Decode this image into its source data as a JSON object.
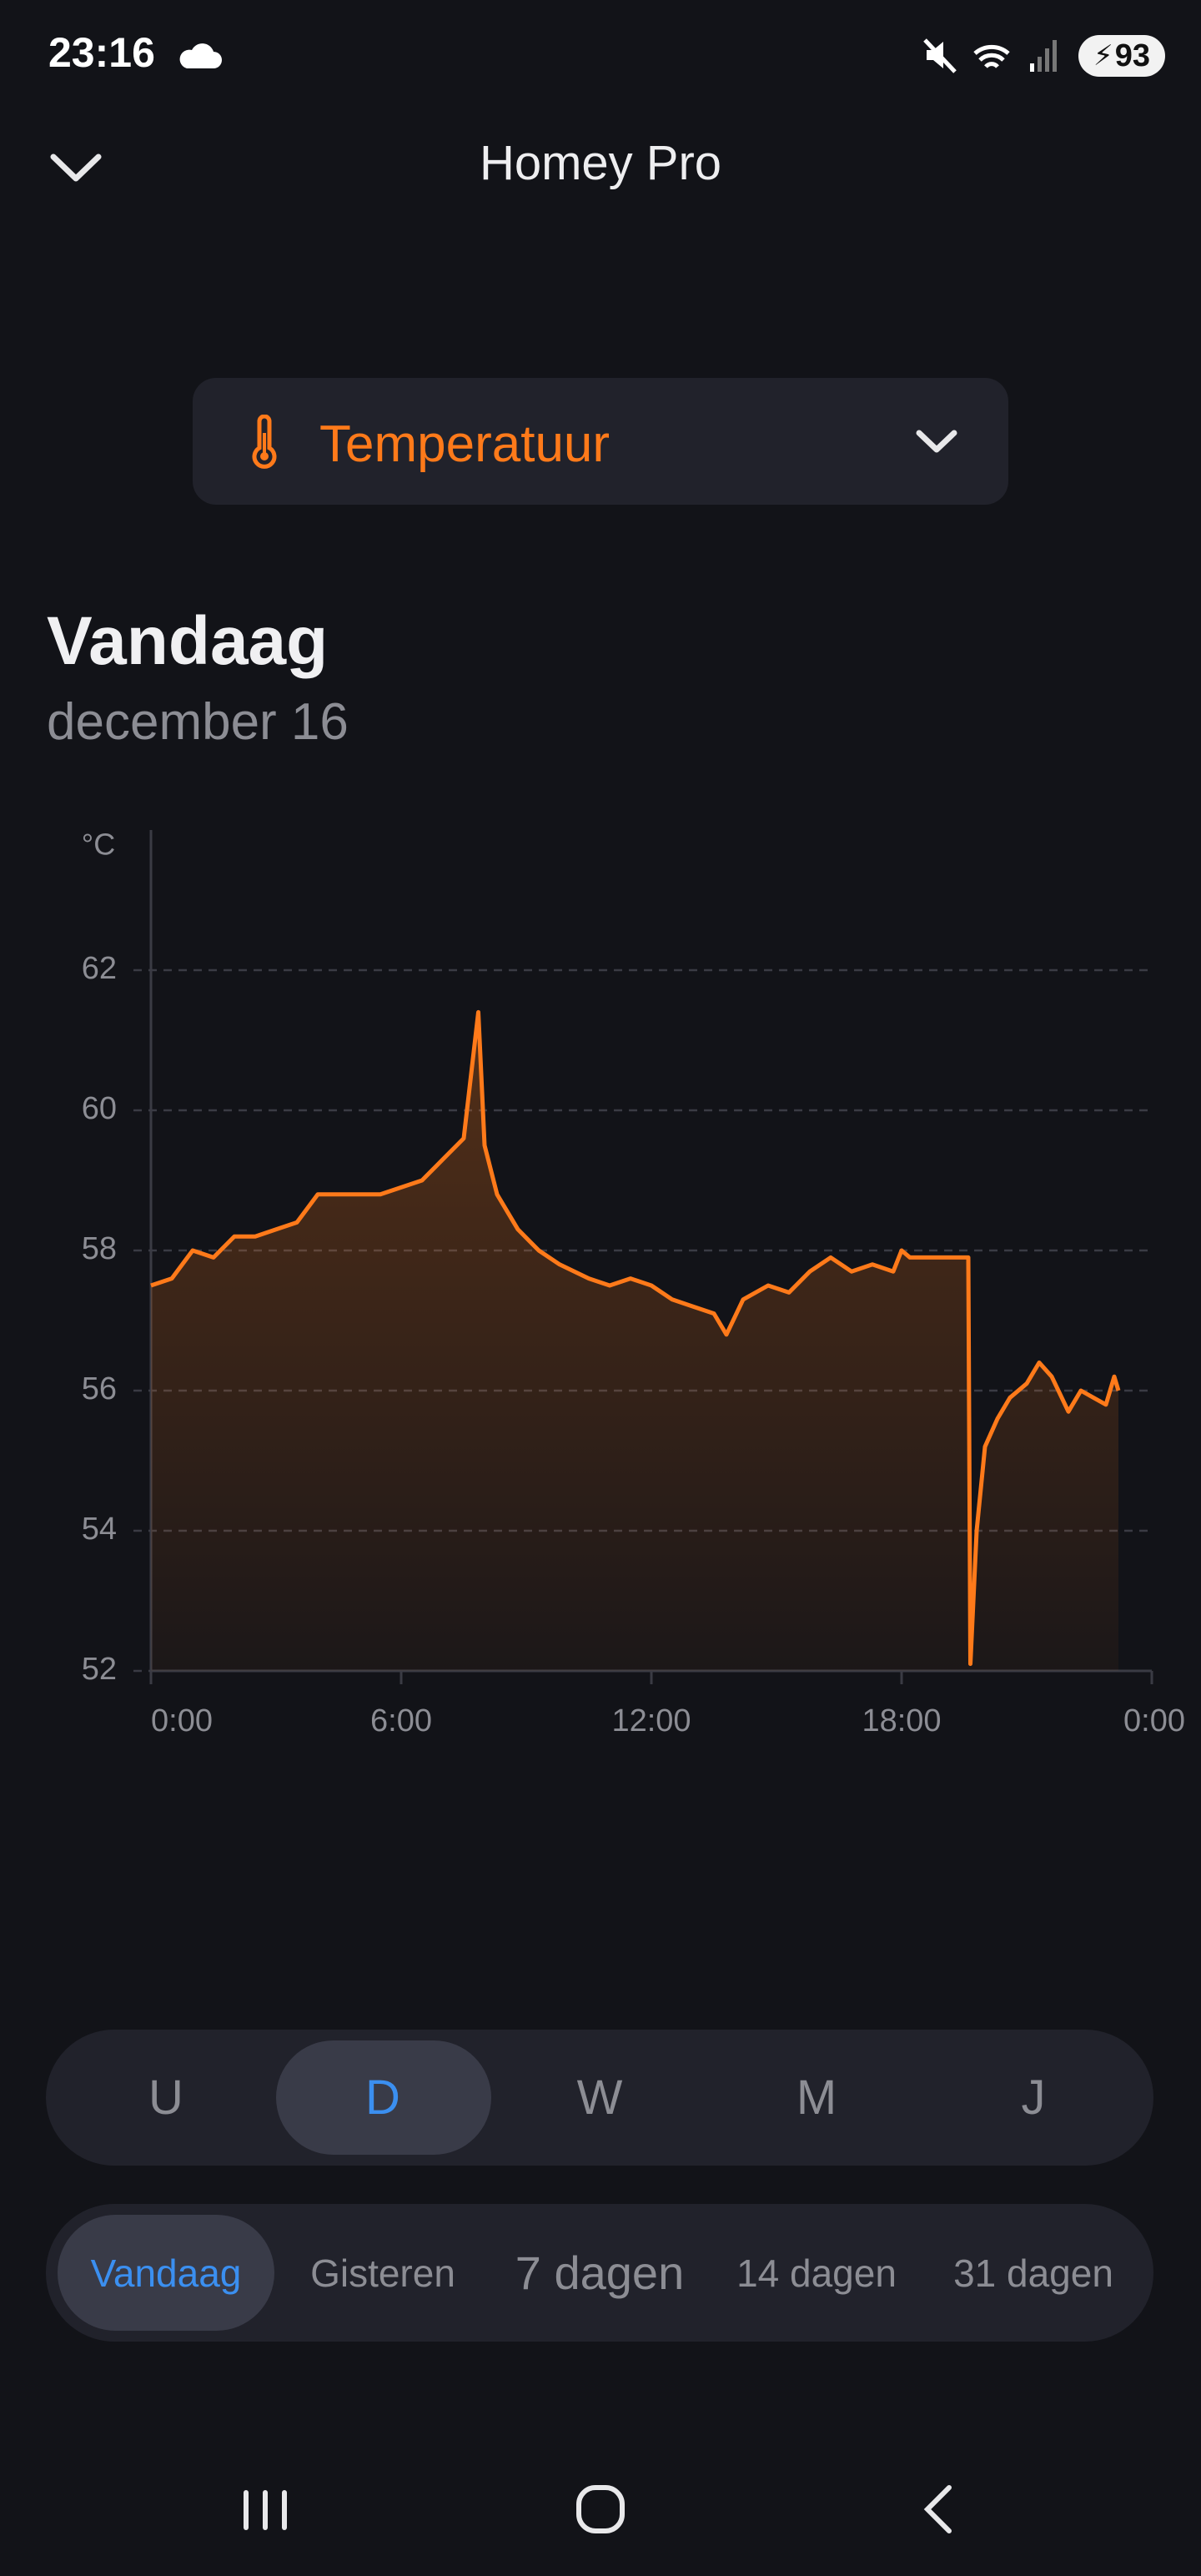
{
  "status_bar": {
    "time": "23:16",
    "battery": "93"
  },
  "header": {
    "title": "Homey Pro"
  },
  "selector": {
    "label": "Temperatuur"
  },
  "heading": {
    "title": "Vandaag",
    "subtitle": "december 16"
  },
  "chart_data": {
    "type": "line",
    "y_unit": "°C",
    "color": "#ff7a1a",
    "x": [
      0,
      0.5,
      1,
      1.5,
      2,
      2.5,
      3,
      3.5,
      4,
      4.5,
      5,
      5.5,
      6,
      6.5,
      7,
      7.5,
      7.85,
      8,
      8.3,
      8.8,
      9.3,
      9.8,
      10.5,
      11,
      11.5,
      12,
      12.5,
      13,
      13.5,
      13.8,
      14.2,
      14.8,
      15.3,
      15.8,
      16.3,
      16.8,
      17.3,
      17.8,
      18,
      18.2,
      19.6,
      19.65,
      19.8,
      20,
      20.3,
      20.6,
      21,
      21.3,
      21.6,
      22,
      22.3,
      22.6,
      22.9,
      23.1,
      23.2
    ],
    "values": [
      57.5,
      57.6,
      58,
      57.9,
      58.2,
      58.2,
      58.3,
      58.4,
      58.8,
      58.8,
      58.8,
      58.8,
      58.9,
      59,
      59.3,
      59.6,
      61.4,
      59.5,
      58.8,
      58.3,
      58,
      57.8,
      57.6,
      57.5,
      57.6,
      57.5,
      57.3,
      57.2,
      57.1,
      56.8,
      57.3,
      57.5,
      57.4,
      57.7,
      57.9,
      57.7,
      57.8,
      57.7,
      58,
      57.9,
      57.9,
      52.1,
      54,
      55.2,
      55.6,
      55.9,
      56.1,
      56.4,
      56.2,
      55.7,
      56,
      55.9,
      55.8,
      56.2,
      56
    ],
    "xlim": [
      0,
      24
    ],
    "xticks": [
      {
        "value": 0,
        "label": "0:00"
      },
      {
        "value": 6,
        "label": "6:00"
      },
      {
        "value": 12,
        "label": "12:00"
      },
      {
        "value": 18,
        "label": "18:00"
      },
      {
        "value": 24,
        "label": "0:00"
      }
    ],
    "ylim": [
      52,
      64
    ],
    "yticks": [
      52,
      54,
      56,
      58,
      60,
      62
    ],
    "grid": true
  },
  "period_tabs": [
    "U",
    "D",
    "W",
    "M",
    "J"
  ],
  "range_tabs": [
    "Vandaag",
    "Gisteren",
    "7 dagen",
    "14 dagen",
    "31 dagen"
  ]
}
